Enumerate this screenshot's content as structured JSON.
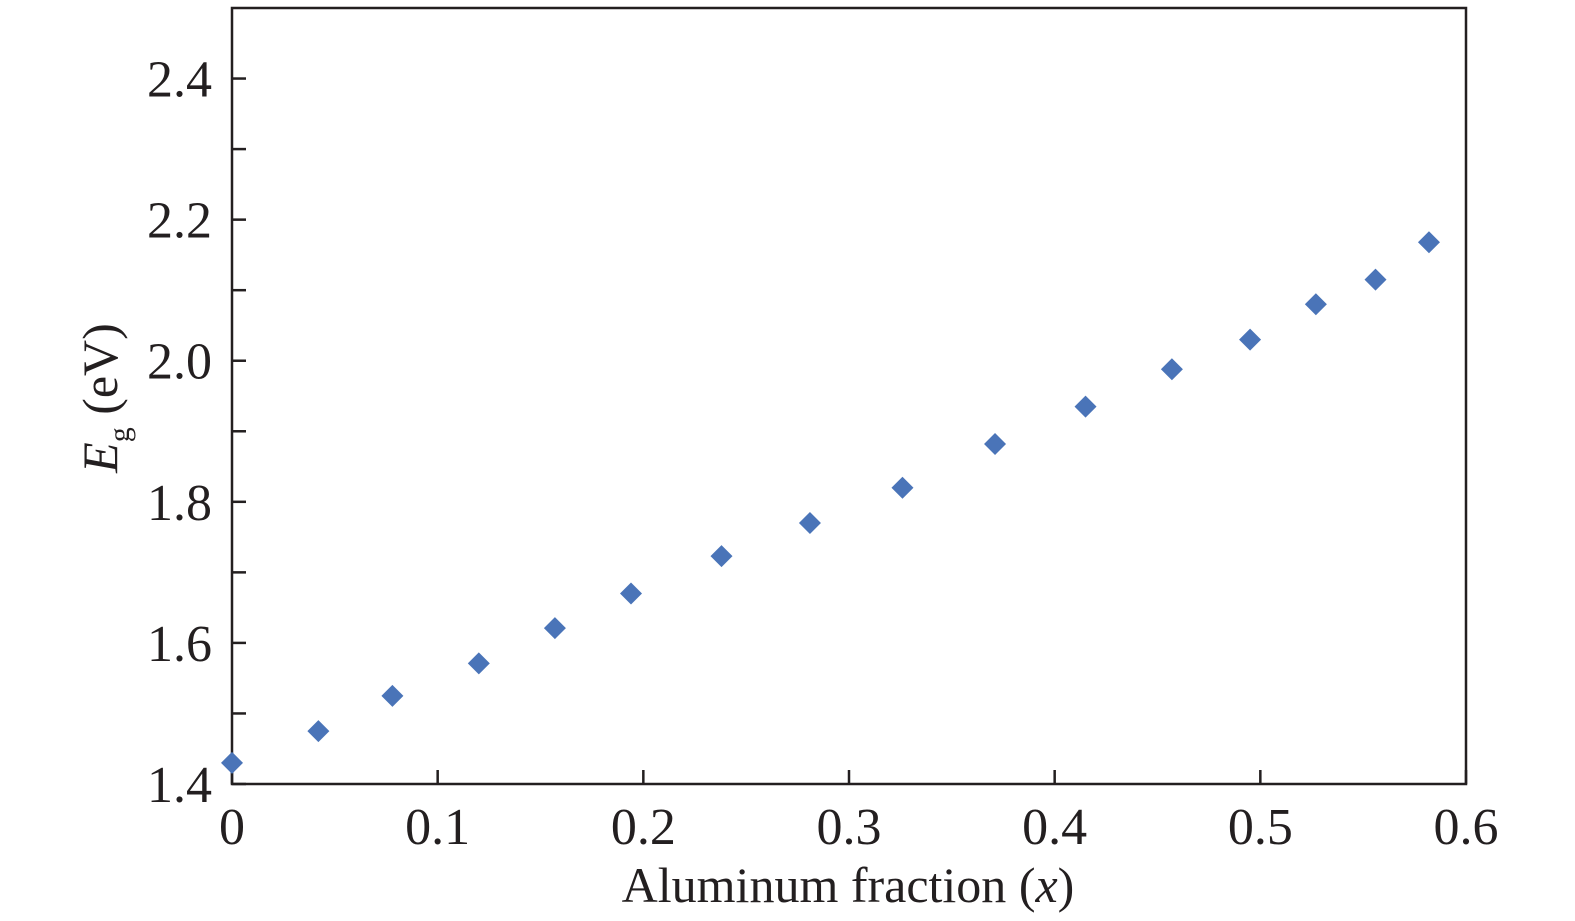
{
  "chart_data": {
    "type": "scatter",
    "title": "",
    "xlabel": "Aluminum fraction",
    "xlabel_var": "x",
    "ylabel_symbol": "E",
    "ylabel_subscript": "g",
    "ylabel_unit": "(eV)",
    "xlim": [
      0,
      0.6
    ],
    "ylim": [
      1.4,
      2.5
    ],
    "x_major_ticks": [
      0,
      0.1,
      0.2,
      0.3,
      0.4,
      0.5,
      0.6
    ],
    "x_tick_labels": [
      "0",
      "0.1",
      "0.2",
      "0.3",
      "0.4",
      "0.5",
      "0.6"
    ],
    "y_major_ticks": [
      1.4,
      1.6,
      1.8,
      2.0,
      2.2,
      2.4
    ],
    "y_tick_labels": [
      "1.4",
      "1.6",
      "1.8",
      "2.0",
      "2.2",
      "2.4"
    ],
    "y_minor_ticks": [
      1.5,
      1.7,
      1.9,
      2.1,
      2.3
    ],
    "grid": false,
    "marker": "diamond",
    "color": "#4a74b8",
    "series": [
      {
        "name": "Eg",
        "x": [
          0.0,
          0.042,
          0.078,
          0.12,
          0.157,
          0.194,
          0.238,
          0.281,
          0.326,
          0.371,
          0.415,
          0.457,
          0.495,
          0.527,
          0.556,
          0.582
        ],
        "y": [
          1.43,
          1.475,
          1.525,
          1.571,
          1.621,
          1.67,
          1.723,
          1.77,
          1.82,
          1.882,
          1.935,
          1.988,
          2.03,
          2.08,
          2.115,
          2.168
        ]
      }
    ]
  }
}
